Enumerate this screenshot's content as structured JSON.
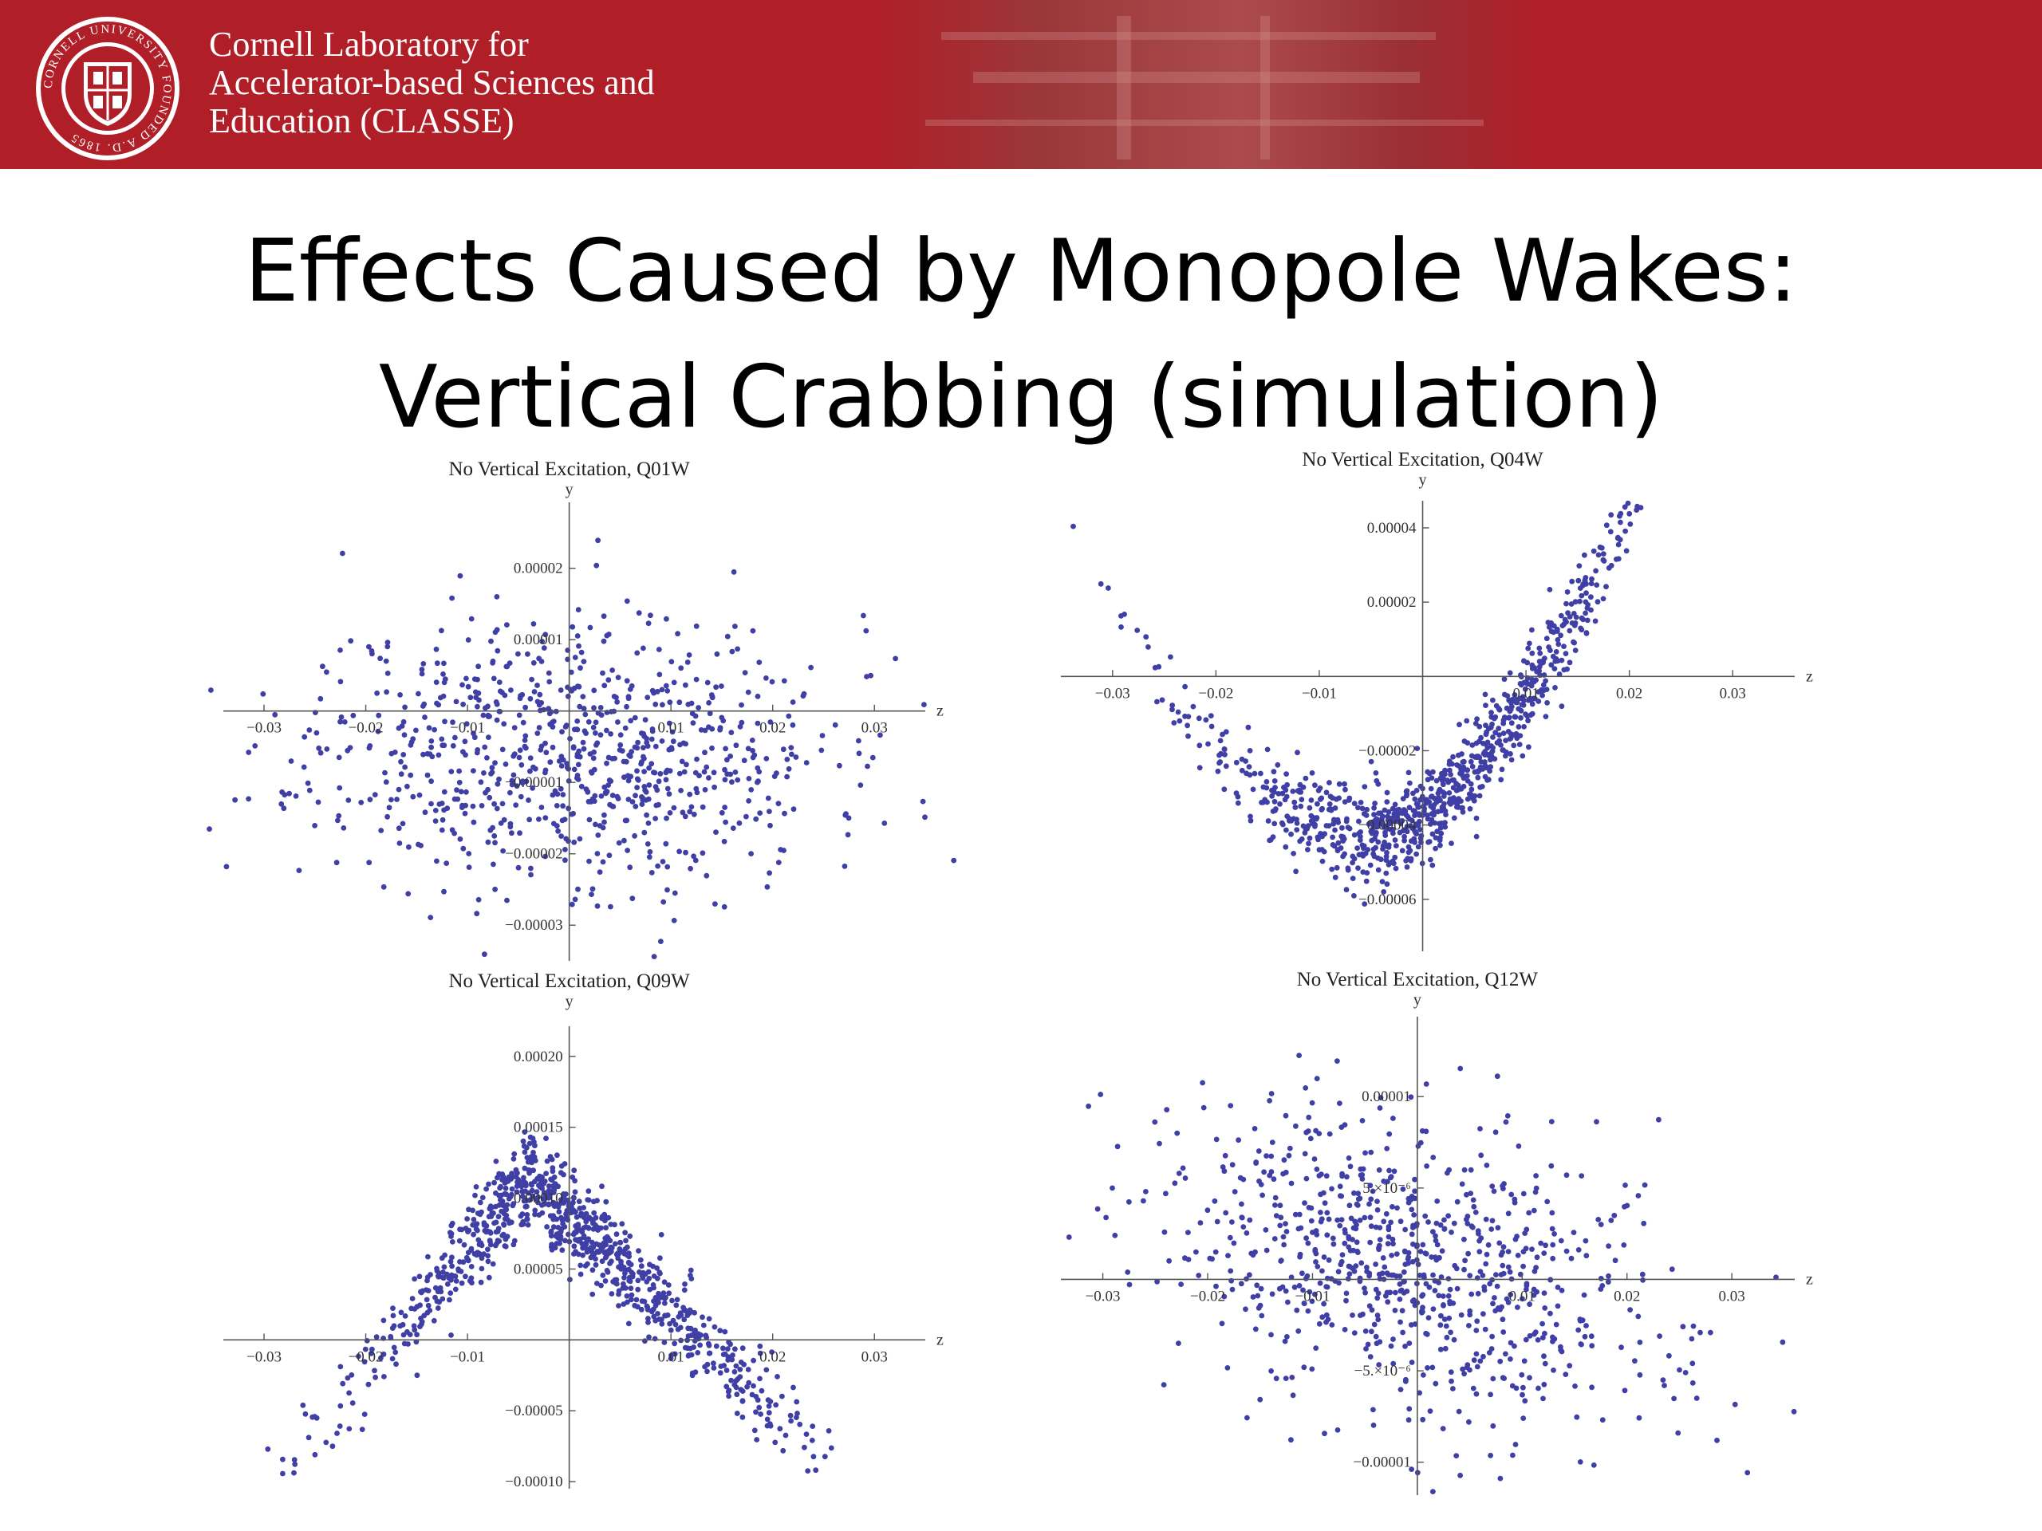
{
  "header": {
    "org_lines": [
      "Cornell Laboratory for",
      "Accelerator-based Sciences and",
      "Education (CLASSE)"
    ],
    "seal_text": "CORNELL UNIVERSITY FOUNDED A.D. 1865",
    "brand_color": "#b01f28"
  },
  "slide": {
    "title_line1": "Effects Caused by Monopole Wakes:",
    "title_line2": "Vertical Crabbing (simulation)"
  },
  "chart_data": [
    {
      "type": "scatter",
      "title": "No Vertical Excitation, Q01W",
      "xlabel": "z",
      "ylabel": "y",
      "xlim": [
        -0.034,
        0.035
      ],
      "ylim": [
        -3.5e-05,
        2.7e-05
      ],
      "xticks": [
        -0.03,
        -0.02,
        -0.01,
        0.01,
        0.02,
        0.03
      ],
      "xtick_labels": [
        "−0.03",
        "−0.02",
        "−0.01",
        "0.01",
        "0.02",
        "0.03"
      ],
      "yticks": [
        2e-05,
        1e-05,
        -1e-05,
        -2e-05,
        -3e-05
      ],
      "ytick_labels": [
        "0.00002",
        "0.00001",
        "−0.00001",
        "−0.00002",
        "−0.00003"
      ],
      "color": "#3f3fa5",
      "pattern": {
        "center_y": -5.5e-06,
        "slope": 0.0,
        "sigma_z": 0.0125,
        "sigma_y": 9.5e-06,
        "n": 820,
        "seed": 11
      },
      "grid": false
    },
    {
      "type": "scatter",
      "title": "No Vertical Excitation, Q04W",
      "xlabel": "z",
      "ylabel": "y",
      "xlim": [
        -0.035,
        0.036
      ],
      "ylim": [
        -7.4e-05,
        4.3e-05
      ],
      "xticks": [
        -0.03,
        -0.02,
        -0.01,
        0.01,
        0.02,
        0.03
      ],
      "xtick_labels": [
        "−0.03",
        "−0.02",
        "−0.01",
        "0.01",
        "0.02",
        "0.03"
      ],
      "yticks": [
        4e-05,
        2e-05,
        -2e-05,
        -4e-05,
        -6e-05
      ],
      "ytick_labels": [
        "0.00004",
        "0.00002",
        "−0.00002",
        "−0.00004",
        "−0.00006"
      ],
      "color": "#3f3fa5",
      "pattern": {
        "parabola_min_z": -0.003,
        "parabola_min_y": -4.3e-05,
        "curvature": 0.095,
        "sigma_z": 0.0115,
        "sigma_y": 6.2e-06,
        "n": 900,
        "seed": 23
      },
      "grid": false
    },
    {
      "type": "scatter",
      "title": "No Vertical Excitation, Q09W",
      "xlabel": "z",
      "ylabel": "y",
      "xlim": [
        -0.034,
        0.035
      ],
      "ylim": [
        -0.000105,
        0.00021
      ],
      "xticks": [
        -0.03,
        -0.02,
        -0.01,
        0.01,
        0.02,
        0.03
      ],
      "xtick_labels": [
        "−0.03",
        "−0.02",
        "−0.01",
        "0.01",
        "0.02",
        "0.03"
      ],
      "yticks": [
        0.0002,
        0.00015,
        0.0001,
        5e-05,
        -5e-05,
        -0.0001
      ],
      "ytick_labels": [
        "0.00020",
        "0.00015",
        "0.00010",
        "0.00005",
        "−0.00005",
        "−0.00010"
      ],
      "color": "#3f3fa5",
      "pattern": {
        "peak_z": -0.004,
        "peak_y": 0.000115,
        "left_slope": 0.0085,
        "right_slope": -0.0068,
        "sigma_z": 0.0105,
        "sigma_y": 1.6e-05,
        "n": 900,
        "seed": 37
      },
      "grid": false
    },
    {
      "type": "scatter",
      "title": "No Vertical Excitation, Q12W",
      "xlabel": "z",
      "ylabel": "y",
      "xlim": [
        -0.034,
        0.036
      ],
      "ylim": [
        -1.18e-05,
        1.35e-05
      ],
      "xticks": [
        -0.03,
        -0.02,
        -0.01,
        0.01,
        0.02,
        0.03
      ],
      "xtick_labels": [
        "−0.03",
        "−0.02",
        "−0.01",
        "0.01",
        "0.02",
        "0.03"
      ],
      "yticks": [
        1e-05,
        5e-06,
        -5e-06,
        -1e-05
      ],
      "ytick_labels": [
        "0.00001",
        "5.×10⁻⁶",
        "−5.×10⁻⁶",
        "−0.00001"
      ],
      "color": "#3f3fa5",
      "pattern": {
        "center_y": 5e-07,
        "slope": -0.00012,
        "sigma_z": 0.0125,
        "sigma_y": 4.2e-06,
        "n": 820,
        "seed": 53
      },
      "grid": false
    }
  ]
}
